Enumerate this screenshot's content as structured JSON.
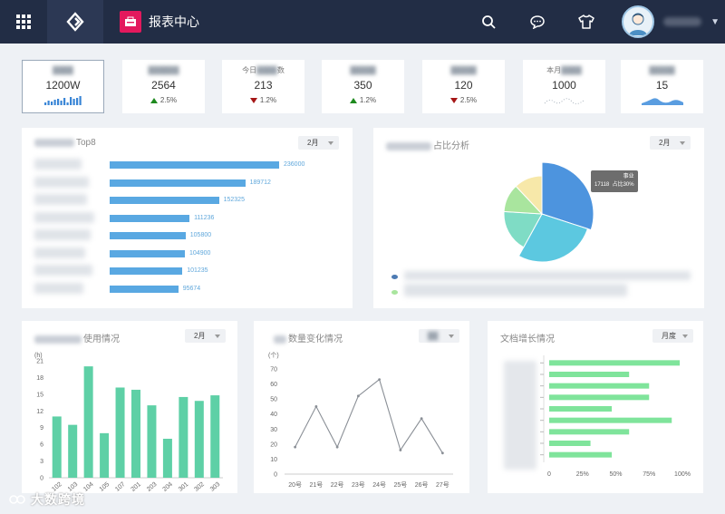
{
  "header": {
    "app_title": "报表中心",
    "icons": [
      "apps-grid-icon",
      "logo-icon",
      "search-icon",
      "chat-icon",
      "shirt-icon"
    ]
  },
  "kpis": [
    {
      "label": "",
      "value": "1200W",
      "sub": "",
      "spark": "bars"
    },
    {
      "label": "",
      "value": "2564",
      "trend": "up",
      "pct": "2.5%"
    },
    {
      "label_left": "今日",
      "label_right": "数",
      "value": "213",
      "trend": "down",
      "pct": "1.2%"
    },
    {
      "label": "",
      "value": "350",
      "trend": "up",
      "pct": "1.2%"
    },
    {
      "label": "",
      "value": "120",
      "trend": "down",
      "pct": "2.5%"
    },
    {
      "label_left": "本月",
      "label_right": "",
      "value": "1000",
      "spark": "dotted-wave"
    },
    {
      "label": "",
      "value": "15",
      "spark": "area"
    }
  ],
  "top8": {
    "title_suffix": "Top8",
    "dropdown": "2月",
    "values": [
      "236000",
      "189712",
      "152325",
      "111236",
      "105800",
      "104900",
      "101235",
      "95674"
    ],
    "fractions": [
      1.0,
      0.8,
      0.645,
      0.471,
      0.448,
      0.444,
      0.429,
      0.405
    ]
  },
  "pie": {
    "title_suffix": "占比分析",
    "dropdown": "2月",
    "tooltip_name": "事业",
    "tooltip_value": "17118",
    "tooltip_pct": "占比30%",
    "colors": [
      "#4d94de",
      "#5cc8e0",
      "#7fdcc5",
      "#a9e59e",
      "#f7e8a9"
    ],
    "shares": [
      0.3,
      0.28,
      0.18,
      0.12,
      0.12
    ]
  },
  "usage": {
    "title_suffix": "使用情况",
    "dropdown": "2月",
    "y_unit": "(h)",
    "color": "#5ed0a6"
  },
  "quantity": {
    "title_suffix": "数量变化情况",
    "y_unit": "(个)"
  },
  "docs": {
    "title_suffix": "文档增长情况",
    "dropdown": "月度",
    "color": "#7fe49b"
  },
  "chart_data": [
    {
      "type": "bar",
      "title": "使用情况",
      "ylabel": "(h)",
      "categories": [
        "102",
        "103",
        "104",
        "105",
        "107",
        "201",
        "203",
        "204",
        "301",
        "302",
        "303"
      ],
      "values": [
        11,
        9.5,
        20,
        8,
        16.2,
        15.8,
        13,
        7,
        14.5,
        13.8,
        14.8
      ],
      "ylim": [
        0,
        21
      ],
      "yticks": [
        "0",
        "3",
        "6",
        "9",
        "12",
        "15",
        "18",
        "21"
      ]
    },
    {
      "type": "line",
      "title": "数量变化情况",
      "ylabel": "(个)",
      "categories": [
        "20号",
        "21号",
        "22号",
        "23号",
        "24号",
        "25号",
        "26号",
        "27号"
      ],
      "values": [
        18,
        45,
        18,
        52,
        63,
        16,
        37,
        14
      ],
      "ylim": [
        0,
        70
      ],
      "yticks": [
        "0",
        "10",
        "20",
        "30",
        "40",
        "50",
        "60",
        "70"
      ]
    },
    {
      "type": "bar",
      "title": "文档增长情况",
      "orientation": "horizontal",
      "values": [
        0.98,
        0.6,
        0.75,
        0.75,
        0.47,
        0.92,
        0.6,
        0.31,
        0.47
      ],
      "xticks": [
        "0",
        "25%",
        "50%",
        "75%",
        "100%"
      ],
      "xlim": [
        0,
        1
      ]
    }
  ],
  "watermark": "大数跨境"
}
